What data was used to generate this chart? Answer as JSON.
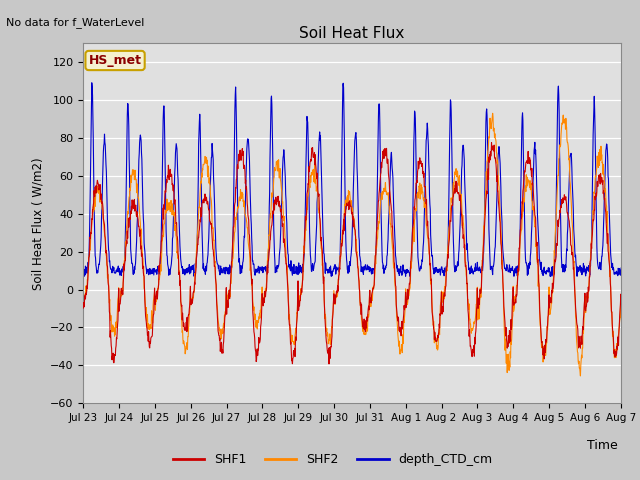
{
  "title": "Soil Heat Flux",
  "no_data_text": "No data for f_WaterLevel",
  "ylabel": "Soil Heat Flux ( W/m2)",
  "xlabel": "Time",
  "ylim": [
    -60,
    130
  ],
  "yticks": [
    -60,
    -40,
    -20,
    0,
    20,
    40,
    60,
    80,
    100,
    120
  ],
  "fig_bg_color": "#c8c8c8",
  "plot_bg_color": "#e0e0e0",
  "legend_label": "HS_met",
  "legend_bg": "#f5f0d0",
  "legend_border": "#c8a000",
  "series": [
    "SHF1",
    "SHF2",
    "depth_CTD_cm"
  ],
  "colors": [
    "#cc0000",
    "#ff8800",
    "#0000cc"
  ],
  "x_tick_labels": [
    "Jul 23",
    "Jul 24",
    "Jul 25",
    "Jul 26",
    "Jul 27",
    "Jul 28",
    "Jul 29",
    "Jul 30",
    "Jul 31",
    "Aug 1",
    "Aug 2",
    "Aug 3",
    "Aug 4",
    "Aug 5",
    "Aug 6",
    "Aug 7"
  ],
  "n_days": 16,
  "n_pts_per_day": 96
}
